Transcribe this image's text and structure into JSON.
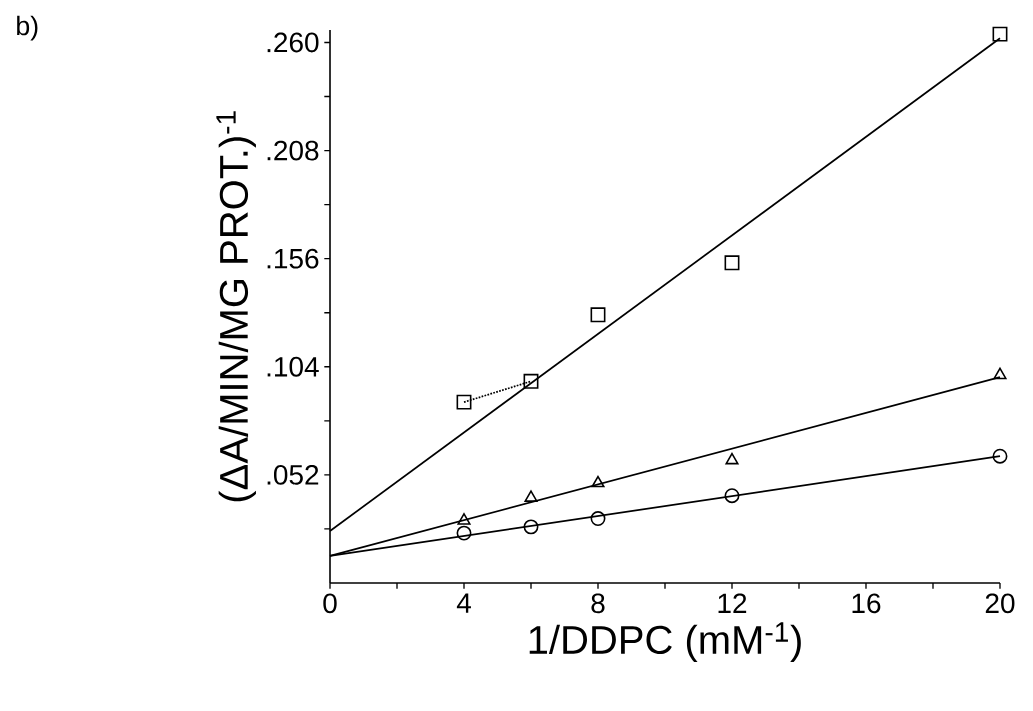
{
  "chart_data": {
    "type": "scatter",
    "xlabel": "1/DDPC (mM$^{-1}$)",
    "ylabel": "(ΔA/MIN/MG PROT.)$^{-1}$",
    "annotations": [
      "b)"
    ],
    "xlim": [
      0,
      20
    ],
    "ylim": [
      0,
      0.266
    ],
    "xticks": [
      0,
      {
        "value": 2,
        "label": null
      },
      4,
      {
        "value": 6,
        "label": null
      },
      8,
      {
        "value": 10,
        "label": null
      },
      12,
      {
        "value": 14,
        "label": null
      },
      16,
      {
        "value": 18,
        "label": null
      },
      20
    ],
    "yticks": [
      {
        "value": 0.026,
        "label": null
      },
      {
        "value": 0.052,
        "label": ".052"
      },
      {
        "value": 0.078,
        "label": null
      },
      {
        "value": 0.104,
        "label": ".104"
      },
      {
        "value": 0.13,
        "label": null
      },
      {
        "value": 0.156,
        "label": ".156"
      },
      {
        "value": 0.182,
        "label": null
      },
      {
        "value": 0.208,
        "label": ".208"
      },
      {
        "value": 0.234,
        "label": null
      },
      {
        "value": 0.26,
        "label": ".260"
      }
    ],
    "grid": false,
    "series": [
      {
        "type": "line",
        "marker": "none",
        "line_style": "solid",
        "color": "#000000",
        "x": [
          0,
          20
        ],
        "values": [
          0.025,
          0.262
        ]
      },
      {
        "type": "line",
        "marker": "none",
        "line_style": "solid",
        "color": "#000000",
        "x": [
          0,
          20
        ],
        "values": [
          0.013,
          0.099
        ]
      },
      {
        "type": "line",
        "marker": "none",
        "line_style": "solid",
        "color": "#000000",
        "x": [
          0,
          20
        ],
        "values": [
          0.013,
          0.061
        ]
      },
      {
        "type": "line",
        "marker": "none",
        "line_style": "dotted",
        "color": "#000000",
        "x": [
          4,
          6
        ],
        "values": [
          0.087,
          0.097
        ]
      },
      {
        "marker": "square",
        "color": "#000000",
        "x": [
          4,
          6,
          8,
          12,
          20
        ],
        "values": [
          0.087,
          0.097,
          0.129,
          0.154,
          0.264
        ]
      },
      {
        "marker": "triangle",
        "color": "#000000",
        "x": [
          4,
          6,
          8,
          12,
          20
        ],
        "values": [
          0.03,
          0.041,
          0.048,
          0.059,
          0.1
        ]
      },
      {
        "marker": "circle",
        "color": "#000000",
        "x": [
          4,
          6,
          8,
          12,
          20
        ],
        "values": [
          0.024,
          0.027,
          0.031,
          0.042,
          0.061
        ]
      }
    ]
  }
}
